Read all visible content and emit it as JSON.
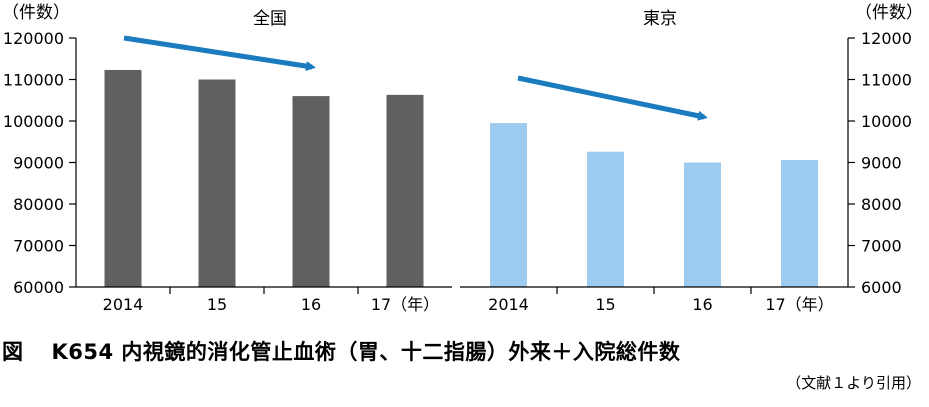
{
  "chart_data": [
    {
      "type": "bar",
      "title": "全国",
      "unit_label": "（件数）",
      "categories": [
        "2014",
        "15",
        "16",
        "17（年）"
      ],
      "values": [
        112300,
        110000,
        106000,
        106300
      ],
      "ylim": [
        60000,
        120000
      ],
      "yticks": [
        "120000",
        "110000",
        "100000",
        "90000",
        "80000",
        "70000",
        "60000"
      ],
      "axis_side": "left",
      "bar_color": "#606060",
      "arrow_color": "#1a7bbf"
    },
    {
      "type": "bar",
      "title": "東京",
      "unit_label": "（件数）",
      "categories": [
        "2014",
        "15",
        "16",
        "17（年）"
      ],
      "values": [
        9950,
        9260,
        9000,
        9060
      ],
      "ylim": [
        6000,
        12000
      ],
      "yticks": [
        "12000",
        "11000",
        "10000",
        "9000",
        "8000",
        "7000",
        "6000"
      ],
      "axis_side": "right",
      "bar_color": "#9dcbef",
      "arrow_color": "#1a7bbf"
    }
  ],
  "caption": {
    "label": "図",
    "text": "K654 内視鏡的消化管止血術（胃、十二指腸）外来＋入院総件数"
  },
  "source": "（文献１より引用）"
}
